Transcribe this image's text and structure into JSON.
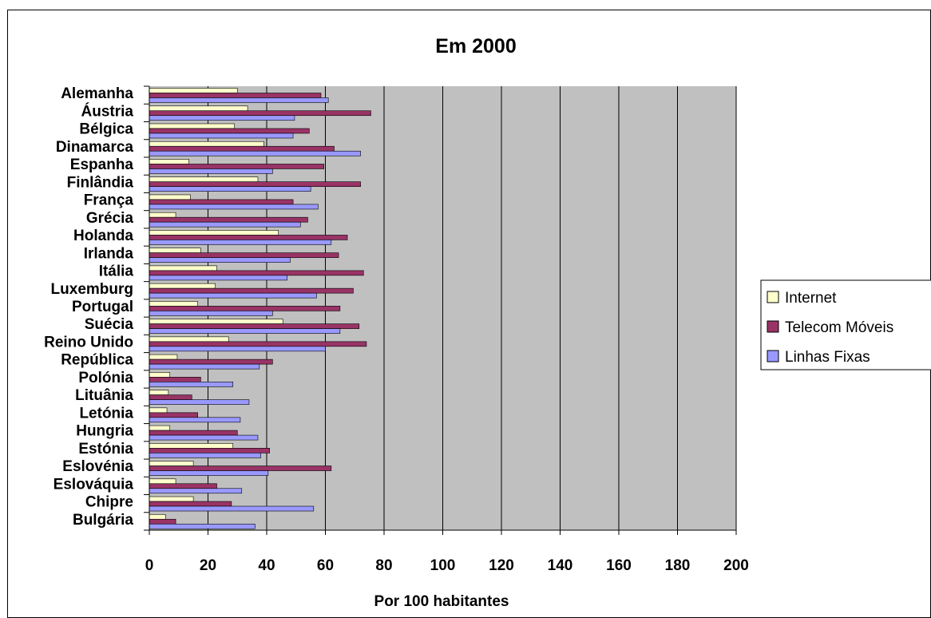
{
  "chart_data": {
    "type": "bar",
    "orientation": "horizontal",
    "title": "Em 2000",
    "xlabel": "Por 100 habitantes",
    "ylabel": "",
    "xlim": [
      0,
      200
    ],
    "x_ticks": [
      "0",
      "20",
      "40",
      "60",
      "80",
      "100",
      "120",
      "140",
      "160",
      "180",
      "200"
    ],
    "grid": true,
    "legend_position": "right",
    "categories": [
      "Alemanha",
      "Áustria",
      "Bélgica",
      "Dinamarca",
      "Espanha",
      "Finlândia",
      "França",
      "Grécia",
      "Holanda",
      "Irlanda",
      "Itália",
      "Luxemburg",
      "Portugal",
      "Suécia",
      "Reino Unido",
      "República",
      "Polónia",
      "Lituânia",
      "Letónia",
      "Hungria",
      "Estónia",
      "Eslovénia",
      "Eslováquia",
      "Chipre",
      "Bulgária"
    ],
    "series": [
      {
        "name": "Internet",
        "color": "#ffffcc",
        "values": [
          30,
          33.5,
          29,
          39,
          13.5,
          37,
          14,
          9,
          44,
          17.5,
          23,
          22.5,
          16.5,
          45.5,
          27,
          9.5,
          7,
          6.5,
          6,
          7,
          28.5,
          15,
          9,
          15,
          5.5
        ]
      },
      {
        "name": "Telecom Móveis",
        "color": "#993366",
        "values": [
          58.5,
          75.5,
          54.5,
          63,
          59.5,
          72,
          49,
          54,
          67.5,
          64.5,
          73,
          69.5,
          65,
          71.5,
          74,
          42,
          17.5,
          14.5,
          16.5,
          30,
          41,
          62,
          23,
          28,
          9
        ]
      },
      {
        "name": "Linhas Fixas",
        "color": "#9999ff",
        "values": [
          61,
          49.5,
          49,
          72,
          42,
          55,
          57.5,
          51.5,
          62,
          48,
          47,
          57,
          42,
          65,
          60,
          37.5,
          28.5,
          34,
          31,
          37,
          38,
          40.5,
          31.5,
          56,
          36
        ]
      }
    ],
    "legend": {
      "items": [
        "Internet",
        " Telecom Móveis",
        "Linhas Fixas"
      ]
    },
    "colors": {
      "plot_background": "#c0c0c0",
      "gridline": "#000000"
    }
  }
}
